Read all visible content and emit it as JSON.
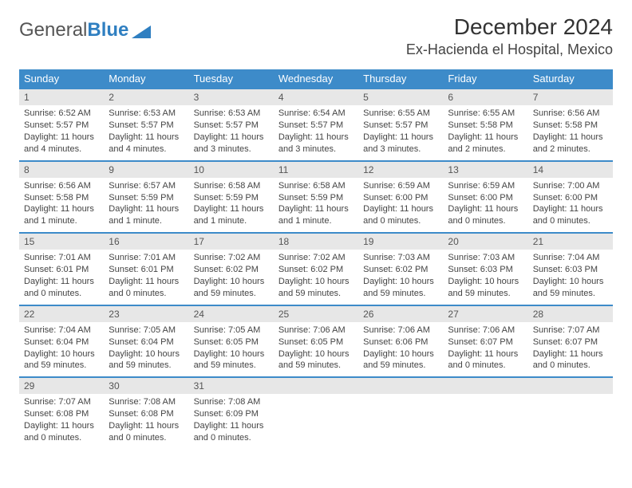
{
  "brand": {
    "word1": "General",
    "word2": "Blue"
  },
  "title": "December 2024",
  "location": "Ex-Hacienda el Hospital, Mexico",
  "day_headers": [
    "Sunday",
    "Monday",
    "Tuesday",
    "Wednesday",
    "Thursday",
    "Friday",
    "Saturday"
  ],
  "colors": {
    "header_bg": "#3d8bc9",
    "header_text": "#ffffff",
    "daynum_bg": "#e7e7e7",
    "daynum_border": "#3d8bc9",
    "body_text": "#444444",
    "page_bg": "#ffffff"
  },
  "fonts": {
    "title_size_pt": 21,
    "location_size_pt": 13,
    "header_size_pt": 10,
    "cell_size_pt": 8
  },
  "weeks": [
    [
      {
        "n": "1",
        "sr": "6:52 AM",
        "ss": "5:57 PM",
        "dl": "11 hours and 4 minutes."
      },
      {
        "n": "2",
        "sr": "6:53 AM",
        "ss": "5:57 PM",
        "dl": "11 hours and 4 minutes."
      },
      {
        "n": "3",
        "sr": "6:53 AM",
        "ss": "5:57 PM",
        "dl": "11 hours and 3 minutes."
      },
      {
        "n": "4",
        "sr": "6:54 AM",
        "ss": "5:57 PM",
        "dl": "11 hours and 3 minutes."
      },
      {
        "n": "5",
        "sr": "6:55 AM",
        "ss": "5:57 PM",
        "dl": "11 hours and 3 minutes."
      },
      {
        "n": "6",
        "sr": "6:55 AM",
        "ss": "5:58 PM",
        "dl": "11 hours and 2 minutes."
      },
      {
        "n": "7",
        "sr": "6:56 AM",
        "ss": "5:58 PM",
        "dl": "11 hours and 2 minutes."
      }
    ],
    [
      {
        "n": "8",
        "sr": "6:56 AM",
        "ss": "5:58 PM",
        "dl": "11 hours and 1 minute."
      },
      {
        "n": "9",
        "sr": "6:57 AM",
        "ss": "5:59 PM",
        "dl": "11 hours and 1 minute."
      },
      {
        "n": "10",
        "sr": "6:58 AM",
        "ss": "5:59 PM",
        "dl": "11 hours and 1 minute."
      },
      {
        "n": "11",
        "sr": "6:58 AM",
        "ss": "5:59 PM",
        "dl": "11 hours and 1 minute."
      },
      {
        "n": "12",
        "sr": "6:59 AM",
        "ss": "6:00 PM",
        "dl": "11 hours and 0 minutes."
      },
      {
        "n": "13",
        "sr": "6:59 AM",
        "ss": "6:00 PM",
        "dl": "11 hours and 0 minutes."
      },
      {
        "n": "14",
        "sr": "7:00 AM",
        "ss": "6:00 PM",
        "dl": "11 hours and 0 minutes."
      }
    ],
    [
      {
        "n": "15",
        "sr": "7:01 AM",
        "ss": "6:01 PM",
        "dl": "11 hours and 0 minutes."
      },
      {
        "n": "16",
        "sr": "7:01 AM",
        "ss": "6:01 PM",
        "dl": "11 hours and 0 minutes."
      },
      {
        "n": "17",
        "sr": "7:02 AM",
        "ss": "6:02 PM",
        "dl": "10 hours and 59 minutes."
      },
      {
        "n": "18",
        "sr": "7:02 AM",
        "ss": "6:02 PM",
        "dl": "10 hours and 59 minutes."
      },
      {
        "n": "19",
        "sr": "7:03 AM",
        "ss": "6:02 PM",
        "dl": "10 hours and 59 minutes."
      },
      {
        "n": "20",
        "sr": "7:03 AM",
        "ss": "6:03 PM",
        "dl": "10 hours and 59 minutes."
      },
      {
        "n": "21",
        "sr": "7:04 AM",
        "ss": "6:03 PM",
        "dl": "10 hours and 59 minutes."
      }
    ],
    [
      {
        "n": "22",
        "sr": "7:04 AM",
        "ss": "6:04 PM",
        "dl": "10 hours and 59 minutes."
      },
      {
        "n": "23",
        "sr": "7:05 AM",
        "ss": "6:04 PM",
        "dl": "10 hours and 59 minutes."
      },
      {
        "n": "24",
        "sr": "7:05 AM",
        "ss": "6:05 PM",
        "dl": "10 hours and 59 minutes."
      },
      {
        "n": "25",
        "sr": "7:06 AM",
        "ss": "6:05 PM",
        "dl": "10 hours and 59 minutes."
      },
      {
        "n": "26",
        "sr": "7:06 AM",
        "ss": "6:06 PM",
        "dl": "10 hours and 59 minutes."
      },
      {
        "n": "27",
        "sr": "7:06 AM",
        "ss": "6:07 PM",
        "dl": "11 hours and 0 minutes."
      },
      {
        "n": "28",
        "sr": "7:07 AM",
        "ss": "6:07 PM",
        "dl": "11 hours and 0 minutes."
      }
    ],
    [
      {
        "n": "29",
        "sr": "7:07 AM",
        "ss": "6:08 PM",
        "dl": "11 hours and 0 minutes."
      },
      {
        "n": "30",
        "sr": "7:08 AM",
        "ss": "6:08 PM",
        "dl": "11 hours and 0 minutes."
      },
      {
        "n": "31",
        "sr": "7:08 AM",
        "ss": "6:09 PM",
        "dl": "11 hours and 0 minutes."
      },
      null,
      null,
      null,
      null
    ]
  ],
  "labels": {
    "sunrise": "Sunrise: ",
    "sunset": "Sunset: ",
    "daylight": "Daylight: "
  }
}
